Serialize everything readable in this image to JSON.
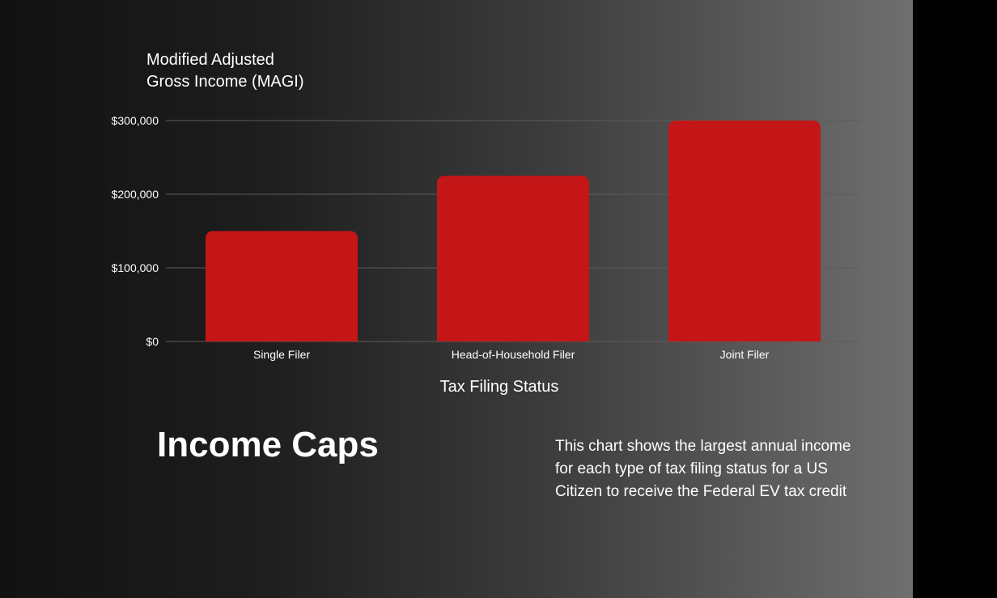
{
  "heading": "Income Caps",
  "description": "This chart shows the largest annual income for each type of tax filing status for a US Citizen to receive the Federal EV tax credit",
  "colors": {
    "bar": "#c41616",
    "text": "#ffffff",
    "gridline": "#5c5c5c"
  },
  "chart_data": {
    "type": "bar",
    "categories": [
      "Single Filer",
      "Head-of-Household Filer",
      "Joint Filer"
    ],
    "values": [
      150000,
      225000,
      300000
    ],
    "ylabel": [
      "Modified Adjusted",
      "Gross Income (MAGI)"
    ],
    "xlabel": "Tax Filing Status",
    "ylim": [
      0,
      300000
    ],
    "yticks": [
      0,
      100000,
      200000,
      300000
    ],
    "ytick_labels": [
      "$0",
      "$100,000",
      "$200,000",
      "$300,000"
    ],
    "grid": true,
    "legend": "none"
  }
}
